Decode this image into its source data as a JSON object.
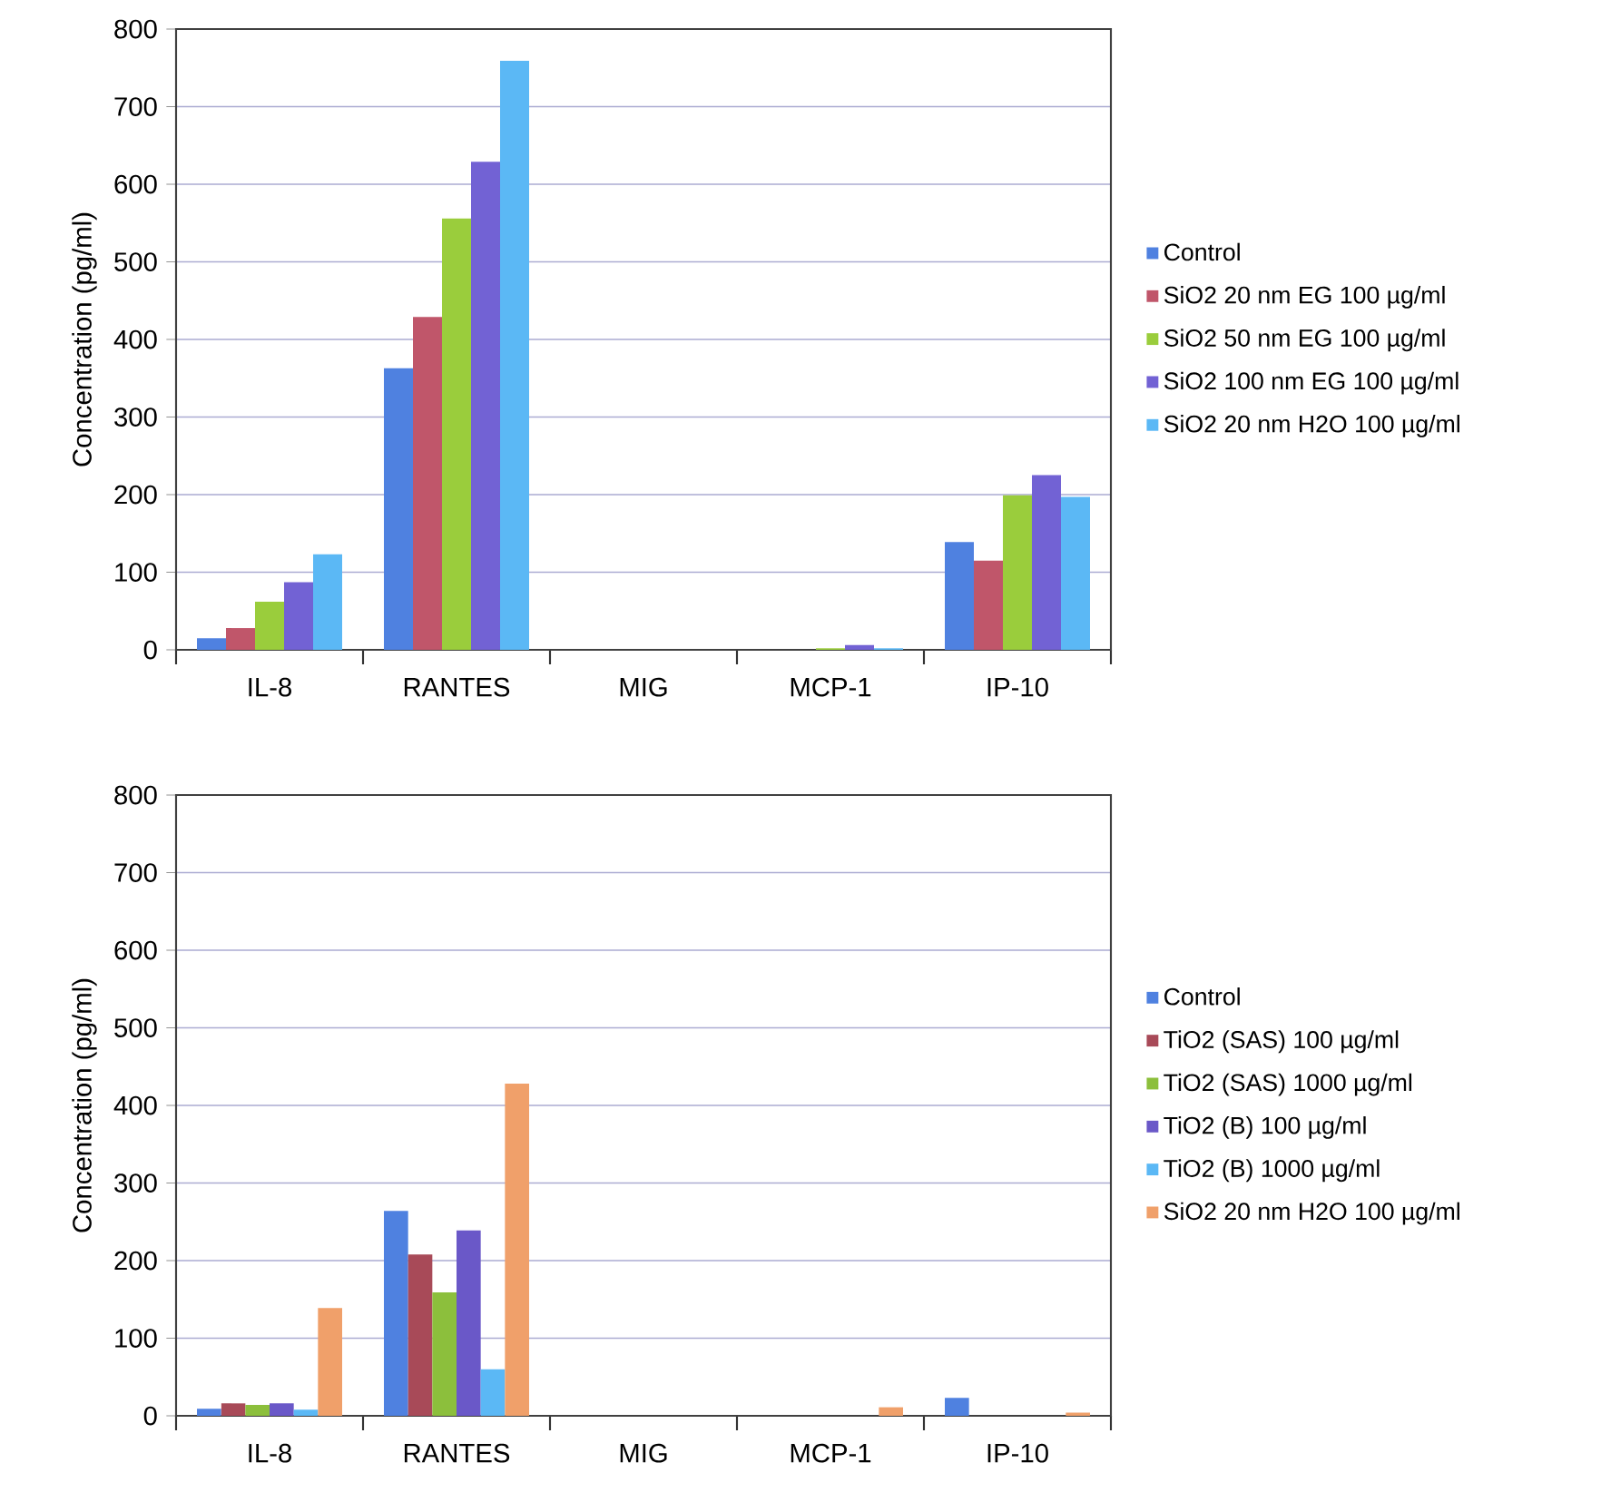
{
  "chart_data": [
    {
      "type": "bar",
      "ylabel": "Concentration (pg/ml)",
      "categories": [
        "IL-8",
        "RANTES",
        "MIG",
        "MCP-1",
        "IP-10"
      ],
      "ylim": [
        0,
        800
      ],
      "yticks": [
        0,
        100,
        200,
        300,
        400,
        500,
        600,
        700,
        800
      ],
      "grid": "y",
      "legend": "right",
      "series": [
        {
          "name": "Control",
          "color": "#4f81e0",
          "values": [
            15,
            363,
            0,
            0,
            139
          ]
        },
        {
          "name": "SiO2 20 nm EG 100 µg/ml",
          "color": "#c0566a",
          "values": [
            28,
            429,
            0,
            0,
            115
          ]
        },
        {
          "name": "SiO2 50 nm EG  100 µg/ml",
          "color": "#9acd3c",
          "values": [
            62,
            556,
            0,
            2,
            199
          ]
        },
        {
          "name": "SiO2 100 nm EG  100 µg/ml",
          "color": "#7262d4",
          "values": [
            87,
            629,
            0,
            6,
            225
          ]
        },
        {
          "name": "SiO2 20 nm H2O  100 µg/ml",
          "color": "#5bb8f5",
          "values": [
            123,
            759,
            0,
            2,
            197
          ]
        }
      ]
    },
    {
      "type": "bar",
      "ylabel": "Concentration (pg/ml)",
      "categories": [
        "IL-8",
        "RANTES",
        "MIG",
        "MCP-1",
        "IP-10"
      ],
      "ylim": [
        0,
        800
      ],
      "yticks": [
        0,
        100,
        200,
        300,
        400,
        500,
        600,
        700,
        800
      ],
      "grid": "y",
      "legend": "right",
      "series": [
        {
          "name": "Control",
          "color": "#4f81e0",
          "values": [
            9,
            264,
            0,
            0,
            23
          ]
        },
        {
          "name": "TiO2 (SAS) 100 µg/ml",
          "color": "#a84a58",
          "values": [
            16,
            208,
            0,
            0,
            0
          ]
        },
        {
          "name": "TiO2 (SAS) 1000 µg/ml",
          "color": "#8cbf3c",
          "values": [
            14,
            159,
            0,
            0,
            0
          ]
        },
        {
          "name": "TiO2 (B) 100 µg/ml",
          "color": "#6a58c8",
          "values": [
            16,
            239,
            0,
            0,
            0
          ]
        },
        {
          "name": "TiO2 (B) 1000 µg/ml",
          "color": "#5bb8f5",
          "values": [
            8,
            60,
            0,
            0,
            0
          ]
        },
        {
          "name": "SiO2 20 nm H2O 100 µg/ml",
          "color": "#f0a06a",
          "values": [
            139,
            428,
            0,
            11,
            4
          ]
        }
      ]
    }
  ]
}
